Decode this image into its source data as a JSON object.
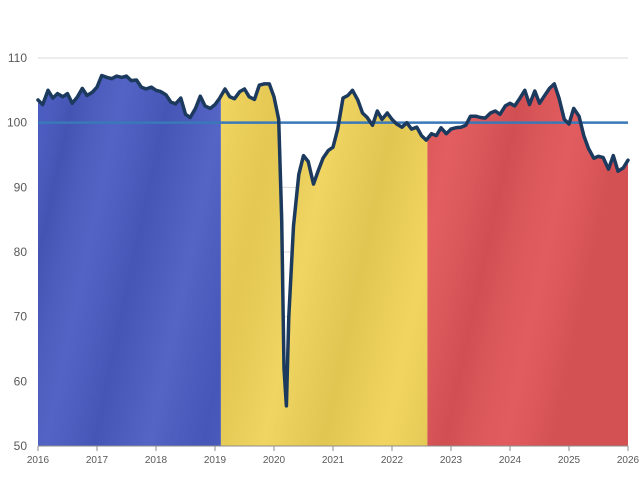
{
  "chart_data": {
    "type": "line",
    "title": "",
    "xlabel": "",
    "ylabel": "",
    "xlim": [
      2016,
      2026
    ],
    "ylim": [
      50,
      110
    ],
    "grid": true,
    "legend": "none",
    "x_ticks": [
      "2016",
      "2017",
      "2018",
      "2019",
      "2020",
      "2021",
      "2022",
      "2023",
      "2024",
      "2025",
      "2026"
    ],
    "y_ticks": [
      "50",
      "60",
      "70",
      "80",
      "90",
      "100",
      "110"
    ],
    "reference_line": {
      "y": 100,
      "color": "#3A78B8"
    },
    "background_bands": [
      {
        "from": 2016.0,
        "to": 2019.1,
        "color": "#4A5BC2"
      },
      {
        "from": 2019.1,
        "to": 2022.6,
        "color": "#F0D257"
      },
      {
        "from": 2022.6,
        "to": 2026.0,
        "color": "#E05558"
      }
    ],
    "line_color": "#1C3A5E",
    "series": [
      {
        "values": [
          [
            2016.0,
            103.5
          ],
          [
            2016.08,
            102.8
          ],
          [
            2016.17,
            105.0
          ],
          [
            2016.25,
            103.8
          ],
          [
            2016.33,
            104.5
          ],
          [
            2016.42,
            104.0
          ],
          [
            2016.5,
            104.5
          ],
          [
            2016.58,
            103.0
          ],
          [
            2016.67,
            104.0
          ],
          [
            2016.75,
            105.3
          ],
          [
            2016.83,
            104.2
          ],
          [
            2016.92,
            104.7
          ],
          [
            2017.0,
            105.5
          ],
          [
            2017.08,
            107.3
          ],
          [
            2017.17,
            107.0
          ],
          [
            2017.25,
            106.8
          ],
          [
            2017.33,
            107.2
          ],
          [
            2017.42,
            107.0
          ],
          [
            2017.5,
            107.2
          ],
          [
            2017.58,
            106.5
          ],
          [
            2017.67,
            106.6
          ],
          [
            2017.75,
            105.5
          ],
          [
            2017.83,
            105.2
          ],
          [
            2017.92,
            105.5
          ],
          [
            2018.0,
            105.0
          ],
          [
            2018.08,
            104.8
          ],
          [
            2018.17,
            104.3
          ],
          [
            2018.25,
            103.2
          ],
          [
            2018.33,
            102.9
          ],
          [
            2018.42,
            103.8
          ],
          [
            2018.5,
            101.3
          ],
          [
            2018.58,
            100.8
          ],
          [
            2018.67,
            102.2
          ],
          [
            2018.75,
            104.1
          ],
          [
            2018.83,
            102.6
          ],
          [
            2018.92,
            102.2
          ],
          [
            2019.0,
            102.8
          ],
          [
            2019.08,
            103.8
          ],
          [
            2019.17,
            105.2
          ],
          [
            2019.25,
            104.0
          ],
          [
            2019.33,
            103.7
          ],
          [
            2019.42,
            104.8
          ],
          [
            2019.5,
            105.2
          ],
          [
            2019.58,
            104.0
          ],
          [
            2019.67,
            103.6
          ],
          [
            2019.75,
            105.8
          ],
          [
            2019.83,
            106.0
          ],
          [
            2019.92,
            106.0
          ],
          [
            2020.0,
            104.0
          ],
          [
            2020.08,
            100.5
          ],
          [
            2020.13,
            85.0
          ],
          [
            2020.17,
            62.0
          ],
          [
            2020.21,
            56.2
          ],
          [
            2020.25,
            70.0
          ],
          [
            2020.33,
            84.0
          ],
          [
            2020.42,
            92.0
          ],
          [
            2020.5,
            94.9
          ],
          [
            2020.58,
            94.0
          ],
          [
            2020.67,
            90.5
          ],
          [
            2020.75,
            92.6
          ],
          [
            2020.83,
            94.5
          ],
          [
            2020.92,
            95.7
          ],
          [
            2021.0,
            96.2
          ],
          [
            2021.08,
            99.0
          ],
          [
            2021.17,
            103.8
          ],
          [
            2021.25,
            104.2
          ],
          [
            2021.33,
            105.0
          ],
          [
            2021.42,
            103.5
          ],
          [
            2021.5,
            101.5
          ],
          [
            2021.58,
            100.8
          ],
          [
            2021.67,
            99.6
          ],
          [
            2021.75,
            101.8
          ],
          [
            2021.83,
            100.5
          ],
          [
            2021.92,
            101.5
          ],
          [
            2022.0,
            100.5
          ],
          [
            2022.08,
            99.8
          ],
          [
            2022.17,
            99.3
          ],
          [
            2022.25,
            100.0
          ],
          [
            2022.33,
            99.0
          ],
          [
            2022.42,
            99.3
          ],
          [
            2022.5,
            98.0
          ],
          [
            2022.58,
            97.3
          ],
          [
            2022.67,
            98.3
          ],
          [
            2022.75,
            98.0
          ],
          [
            2022.83,
            99.2
          ],
          [
            2022.92,
            98.3
          ],
          [
            2023.0,
            99.0
          ],
          [
            2023.08,
            99.2
          ],
          [
            2023.17,
            99.3
          ],
          [
            2023.25,
            99.6
          ],
          [
            2023.33,
            101.0
          ],
          [
            2023.42,
            101.0
          ],
          [
            2023.5,
            100.8
          ],
          [
            2023.58,
            100.7
          ],
          [
            2023.67,
            101.5
          ],
          [
            2023.75,
            101.8
          ],
          [
            2023.83,
            101.3
          ],
          [
            2023.92,
            102.6
          ],
          [
            2024.0,
            103.0
          ],
          [
            2024.08,
            102.6
          ],
          [
            2024.17,
            103.8
          ],
          [
            2024.25,
            105.0
          ],
          [
            2024.33,
            102.8
          ],
          [
            2024.42,
            104.9
          ],
          [
            2024.5,
            103.0
          ],
          [
            2024.58,
            104.1
          ],
          [
            2024.67,
            105.3
          ],
          [
            2024.75,
            106.0
          ],
          [
            2024.83,
            103.8
          ],
          [
            2024.92,
            100.5
          ],
          [
            2025.0,
            99.8
          ],
          [
            2025.08,
            102.2
          ],
          [
            2025.17,
            101.0
          ],
          [
            2025.25,
            98.0
          ],
          [
            2025.33,
            96.0
          ],
          [
            2025.42,
            94.5
          ],
          [
            2025.5,
            94.8
          ],
          [
            2025.58,
            94.6
          ],
          [
            2025.67,
            92.8
          ],
          [
            2025.75,
            94.9
          ],
          [
            2025.83,
            92.5
          ],
          [
            2025.92,
            93.0
          ],
          [
            2026.0,
            94.2
          ]
        ]
      }
    ]
  }
}
